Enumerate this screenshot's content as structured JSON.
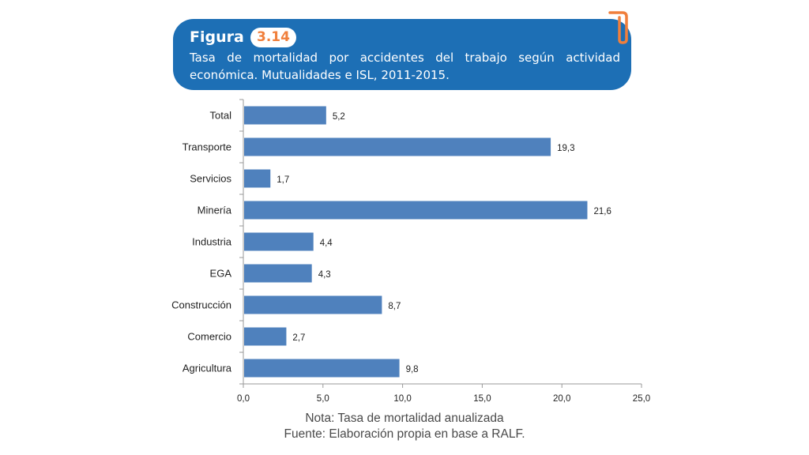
{
  "figure": {
    "label": "Figura",
    "number": "3.14",
    "title": "Tasa de mortalidad por accidentes del trabajo según actividad económica. Mutualidades e ISL, 2011-2015.",
    "header_color": "#1d6fb5",
    "badge_text_color": "#f07f3c"
  },
  "chart_data": {
    "type": "bar",
    "orientation": "horizontal",
    "categories": [
      "Total",
      "Transporte",
      "Servicios",
      "Minería",
      "Industria",
      "EGA",
      "Construcción",
      "Comercio",
      "Agricultura"
    ],
    "values": [
      5.2,
      19.3,
      1.7,
      21.6,
      4.4,
      4.3,
      8.7,
      2.7,
      9.8
    ],
    "data_labels": [
      "5,2",
      "19,3",
      "1,7",
      "21,6",
      "4,4",
      "4,3",
      "8,7",
      "2,7",
      "9,8"
    ],
    "xlim": [
      0,
      25
    ],
    "x_ticks": [
      0,
      5,
      10,
      15,
      20,
      25
    ],
    "x_tick_labels": [
      "0,0",
      "5,0",
      "10,0",
      "15,0",
      "20,0",
      "25,0"
    ],
    "bar_color": "#4f81bd",
    "grid": false,
    "legend": "none"
  },
  "notes": {
    "line1": "Nota: Tasa de mortalidad anualizada",
    "line2": "Fuente: Elaboración propia en base a RALF."
  }
}
